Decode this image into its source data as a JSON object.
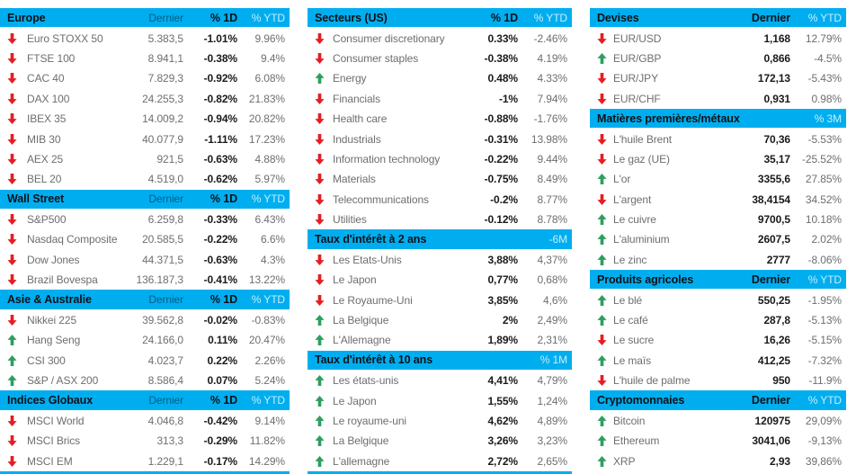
{
  "colors": {
    "header_bar": "#00AEEF",
    "up_arrow": "#2E9E60",
    "down_arrow": "#E31E24",
    "text": "#6D6E71",
    "text_strong": "#1A1A1A"
  },
  "columns": [
    {
      "name": "indices",
      "bottom_bar": true,
      "tables": [
        {
          "title": "Europe",
          "labels": [
            "Dernier",
            "% 1D",
            "% YTD"
          ],
          "rows": [
            [
              "down",
              "Euro STOXX 50",
              "5.383,5",
              "-1.01%",
              "9.96%"
            ],
            [
              "down",
              "FTSE 100",
              "8.941,1",
              "-0.38%",
              "9.4%"
            ],
            [
              "down",
              "CAC 40",
              "7.829,3",
              "-0.92%",
              "6.08%"
            ],
            [
              "down",
              "DAX 100",
              "24.255,3",
              "-0.82%",
              "21.83%"
            ],
            [
              "down",
              "IBEX 35",
              "14.009,2",
              "-0.94%",
              "20.82%"
            ],
            [
              "down",
              "MIB 30",
              "40.077,9",
              "-1.11%",
              "17.23%"
            ],
            [
              "down",
              "AEX 25",
              "921,5",
              "-0.63%",
              "4.88%"
            ],
            [
              "down",
              "BEL 20",
              "4.519,0",
              "-0.62%",
              "5.97%"
            ]
          ]
        },
        {
          "title": "Wall Street",
          "labels": [
            "Dernier",
            "% 1D",
            "% YTD"
          ],
          "rows": [
            [
              "down",
              "S&P500",
              "6.259,8",
              "-0.33%",
              "6.43%"
            ],
            [
              "down",
              "Nasdaq Composite",
              "20.585,5",
              "-0.22%",
              "6.6%"
            ],
            [
              "down",
              "Dow Jones",
              "44.371,5",
              "-0.63%",
              "4.3%"
            ],
            [
              "down",
              "Brazil Bovespa",
              "136.187,3",
              "-0.41%",
              "13.22%"
            ]
          ]
        },
        {
          "title": "Asie & Australie",
          "labels": [
            "Dernier",
            "% 1D",
            "% YTD"
          ],
          "rows": [
            [
              "down",
              "Nikkei 225",
              "39.562,8",
              "-0.02%",
              "-0.83%"
            ],
            [
              "up",
              "Hang Seng",
              "24.166,0",
              "0.11%",
              "20.47%"
            ],
            [
              "up",
              "CSI 300",
              "4.023,7",
              "0.22%",
              "2.26%"
            ],
            [
              "up",
              "S&P / ASX 200",
              "8.586,4",
              "0.07%",
              "5.24%"
            ]
          ]
        },
        {
          "title": "Indices Globaux",
          "labels": [
            "Dernier",
            "% 1D",
            "% YTD"
          ],
          "rows": [
            [
              "down",
              "MSCI World",
              "4.046,8",
              "-0.42%",
              "9.14%"
            ],
            [
              "down",
              "MSCI Brics",
              "313,3",
              "-0.29%",
              "11.82%"
            ],
            [
              "down",
              "MSCI EM",
              "1.229,1",
              "-0.17%",
              "14.29%"
            ]
          ]
        }
      ]
    },
    {
      "name": "secteurs-taux",
      "bottom_bar": true,
      "tables": [
        {
          "title": "Secteurs (US)",
          "labels": [
            "% 1D",
            "% YTD"
          ],
          "rows": [
            [
              "down",
              "Consumer discretionary",
              "0.33%",
              "-2.46%"
            ],
            [
              "down",
              "Consumer staples",
              "-0.38%",
              "4.19%"
            ],
            [
              "up",
              "Energy",
              "0.48%",
              "4.33%"
            ],
            [
              "down",
              "Financials",
              "-1%",
              "7.94%"
            ],
            [
              "down",
              "Health care",
              "-0.88%",
              "-1.76%"
            ],
            [
              "down",
              "Industrials",
              "-0.31%",
              "13.98%"
            ],
            [
              "down",
              "Information technology",
              "-0.22%",
              "9.44%"
            ],
            [
              "down",
              "Materials",
              "-0.75%",
              "8.49%"
            ],
            [
              "down",
              "Telecommunications",
              "-0.2%",
              "8.77%"
            ],
            [
              "down",
              "Utilities",
              "-0.12%",
              "8.78%"
            ]
          ]
        },
        {
          "title": "Taux d'intérêt à 2 ans",
          "labels": [
            "",
            "-6M"
          ],
          "rows": [
            [
              "down",
              "Les Etats-Unis",
              "3,88%",
              "4,37%"
            ],
            [
              "down",
              "Le Japon",
              "0,77%",
              "0,68%"
            ],
            [
              "down",
              "Le Royaume-Uni",
              "3,85%",
              "4,6%"
            ],
            [
              "up",
              "La Belgique",
              "2%",
              "2,49%"
            ],
            [
              "up",
              "L'Allemagne",
              "1,89%",
              "2,31%"
            ]
          ]
        },
        {
          "title": "Taux d'intérêt à 10 ans",
          "labels": [
            "",
            "% 1M"
          ],
          "rows": [
            [
              "up",
              "Les états-unis",
              "4,41%",
              "4,79%"
            ],
            [
              "up",
              "Le Japon",
              "1,55%",
              "1,24%"
            ],
            [
              "up",
              "Le royaume-uni",
              "4,62%",
              "4,89%"
            ],
            [
              "up",
              "La Belgique",
              "3,26%",
              "3,23%"
            ],
            [
              "up",
              "L'allemagne",
              "2,72%",
              "2,65%"
            ]
          ]
        }
      ]
    },
    {
      "name": "devises-matieres-crypto",
      "bottom_bar": false,
      "tables": [
        {
          "title": "Devises",
          "labels": [
            "Dernier",
            "% YTD"
          ],
          "rows": [
            [
              "down",
              "EUR/USD",
              "1,168",
              "12.79%"
            ],
            [
              "up",
              "EUR/GBP",
              "0,866",
              "-4.5%"
            ],
            [
              "down",
              "EUR/JPY",
              "172,13",
              "-5.43%"
            ],
            [
              "down",
              "EUR/CHF",
              "0,931",
              "0.98%"
            ]
          ]
        },
        {
          "title": "Matières premières/métaux",
          "labels": [
            "",
            "% 3M"
          ],
          "rows": [
            [
              "down",
              "L'huile Brent",
              "70,36",
              "-5.53%"
            ],
            [
              "down",
              "Le gaz (UE)",
              "35,17",
              "-25.52%"
            ],
            [
              "up",
              "L'or",
              "3355,6",
              "27.85%"
            ],
            [
              "down",
              "L'argent",
              "38,4154",
              "34.52%"
            ],
            [
              "up",
              "Le cuivre",
              "9700,5",
              "10.18%"
            ],
            [
              "up",
              "L'aluminium",
              "2607,5",
              "2.02%"
            ],
            [
              "up",
              "Le zinc",
              "2777",
              "-8.06%"
            ]
          ]
        },
        {
          "title": "Produits agricoles",
          "labels": [
            "Dernier",
            "% YTD"
          ],
          "rows": [
            [
              "up",
              "Le blé",
              "550,25",
              "-1.95%"
            ],
            [
              "up",
              "Le café",
              "287,8",
              "-5.13%"
            ],
            [
              "down",
              "Le sucre",
              "16,26",
              "-5.15%"
            ],
            [
              "up",
              "Le maïs",
              "412,25",
              "-7.32%"
            ],
            [
              "down",
              "L'huile de palme",
              "950",
              "-11.9%"
            ]
          ]
        },
        {
          "title": "Cryptomonnaies",
          "labels": [
            "Dernier",
            "% YTD"
          ],
          "rows": [
            [
              "up",
              "Bitcoin",
              "120975",
              "29,09%"
            ],
            [
              "up",
              "Ethereum",
              "3041,06",
              "-9,13%"
            ],
            [
              "up",
              "XRP",
              "2,93",
              "39,86%"
            ]
          ]
        }
      ]
    }
  ]
}
